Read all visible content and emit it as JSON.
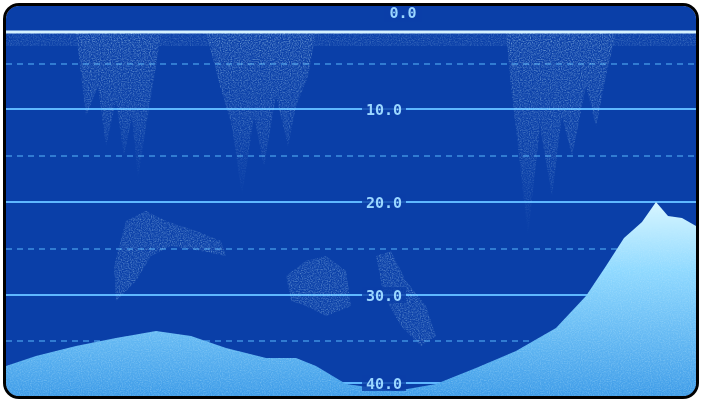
{
  "sonar": {
    "depth_labels": [
      "0.0",
      "10.0",
      "20.0",
      "30.0",
      "40.0"
    ],
    "colors": {
      "background": "#0a3fa8",
      "grid_solid": "#5fb8ff",
      "grid_dashed": "#3e8fe0",
      "echo": "#8fd9ff",
      "echo_bright": "#c8f0ff",
      "label": "#9ad6ff"
    }
  }
}
